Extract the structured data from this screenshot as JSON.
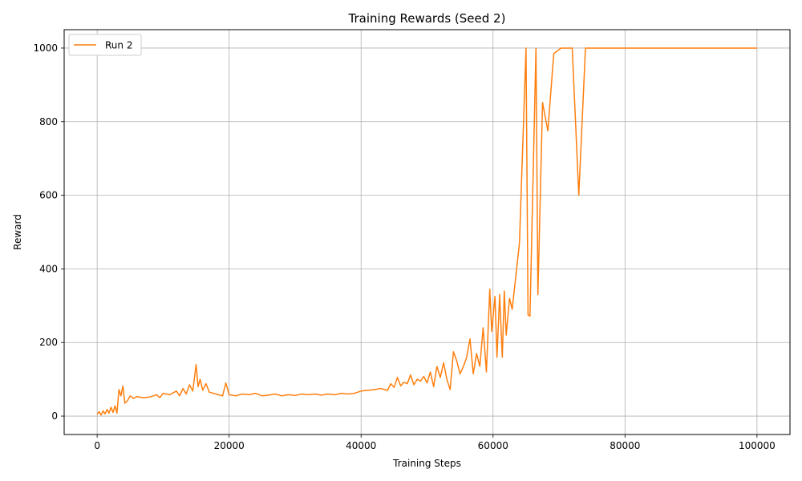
{
  "chart_data": {
    "type": "line",
    "title": "Training Rewards (Seed 2)",
    "xlabel": "Training Steps",
    "ylabel": "Reward",
    "xlim": [
      -5000,
      105000
    ],
    "ylim": [
      -50,
      1050
    ],
    "xticks": [
      0,
      20000,
      40000,
      60000,
      80000,
      100000
    ],
    "yticks": [
      0,
      200,
      400,
      600,
      800,
      1000
    ],
    "grid": true,
    "legend_position": "top-left",
    "series": [
      {
        "name": "Run 2",
        "color": "#ff7f0e",
        "points": [
          [
            0,
            5
          ],
          [
            300,
            12
          ],
          [
            600,
            3
          ],
          [
            900,
            14
          ],
          [
            1200,
            6
          ],
          [
            1500,
            18
          ],
          [
            1800,
            8
          ],
          [
            2100,
            24
          ],
          [
            2400,
            10
          ],
          [
            2700,
            28
          ],
          [
            3000,
            8
          ],
          [
            3300,
            72
          ],
          [
            3600,
            55
          ],
          [
            3900,
            82
          ],
          [
            4200,
            35
          ],
          [
            4600,
            42
          ],
          [
            5000,
            55
          ],
          [
            5500,
            48
          ],
          [
            6000,
            53
          ],
          [
            7000,
            50
          ],
          [
            8000,
            52
          ],
          [
            9000,
            58
          ],
          [
            9500,
            50
          ],
          [
            10000,
            62
          ],
          [
            11000,
            58
          ],
          [
            12000,
            68
          ],
          [
            12500,
            55
          ],
          [
            13000,
            75
          ],
          [
            13500,
            60
          ],
          [
            14000,
            85
          ],
          [
            14500,
            68
          ],
          [
            15000,
            140
          ],
          [
            15300,
            80
          ],
          [
            15600,
            100
          ],
          [
            16000,
            70
          ],
          [
            16500,
            88
          ],
          [
            17000,
            65
          ],
          [
            18000,
            60
          ],
          [
            19000,
            55
          ],
          [
            19500,
            90
          ],
          [
            20000,
            58
          ],
          [
            21000,
            55
          ],
          [
            22000,
            60
          ],
          [
            23000,
            58
          ],
          [
            24000,
            62
          ],
          [
            25000,
            55
          ],
          [
            26000,
            57
          ],
          [
            27000,
            60
          ],
          [
            28000,
            55
          ],
          [
            29000,
            58
          ],
          [
            30000,
            56
          ],
          [
            31000,
            60
          ],
          [
            32000,
            58
          ],
          [
            33000,
            60
          ],
          [
            34000,
            57
          ],
          [
            35000,
            60
          ],
          [
            36000,
            58
          ],
          [
            37000,
            62
          ],
          [
            38000,
            60
          ],
          [
            39000,
            62
          ],
          [
            40000,
            68
          ],
          [
            41000,
            70
          ],
          [
            42000,
            72
          ],
          [
            43000,
            75
          ],
          [
            44000,
            70
          ],
          [
            44500,
            88
          ],
          [
            45000,
            78
          ],
          [
            45500,
            105
          ],
          [
            46000,
            82
          ],
          [
            46500,
            92
          ],
          [
            47000,
            88
          ],
          [
            47500,
            112
          ],
          [
            48000,
            85
          ],
          [
            48500,
            100
          ],
          [
            49000,
            95
          ],
          [
            49500,
            108
          ],
          [
            50000,
            90
          ],
          [
            50500,
            120
          ],
          [
            51000,
            80
          ],
          [
            51500,
            135
          ],
          [
            52000,
            105
          ],
          [
            52500,
            145
          ],
          [
            53000,
            100
          ],
          [
            53500,
            72
          ],
          [
            54000,
            175
          ],
          [
            54500,
            150
          ],
          [
            55000,
            115
          ],
          [
            55500,
            135
          ],
          [
            56000,
            160
          ],
          [
            56500,
            210
          ],
          [
            57000,
            115
          ],
          [
            57500,
            170
          ],
          [
            58000,
            135
          ],
          [
            58500,
            240
          ],
          [
            59000,
            120
          ],
          [
            59500,
            345
          ],
          [
            59800,
            230
          ],
          [
            60300,
            325
          ],
          [
            60600,
            160
          ],
          [
            61000,
            330
          ],
          [
            61400,
            160
          ],
          [
            61700,
            340
          ],
          [
            62000,
            220
          ],
          [
            62500,
            320
          ],
          [
            62900,
            290
          ],
          [
            64000,
            470
          ],
          [
            65000,
            1000
          ],
          [
            65300,
            275
          ],
          [
            65600,
            272
          ],
          [
            66500,
            1000
          ],
          [
            66800,
            330
          ],
          [
            67500,
            852
          ],
          [
            68300,
            775
          ],
          [
            69200,
            985
          ],
          [
            70300,
            1000
          ],
          [
            72000,
            1000
          ],
          [
            73000,
            600
          ],
          [
            74000,
            1000
          ],
          [
            80000,
            1000
          ],
          [
            90000,
            1000
          ],
          [
            100000,
            1000
          ]
        ]
      }
    ]
  }
}
